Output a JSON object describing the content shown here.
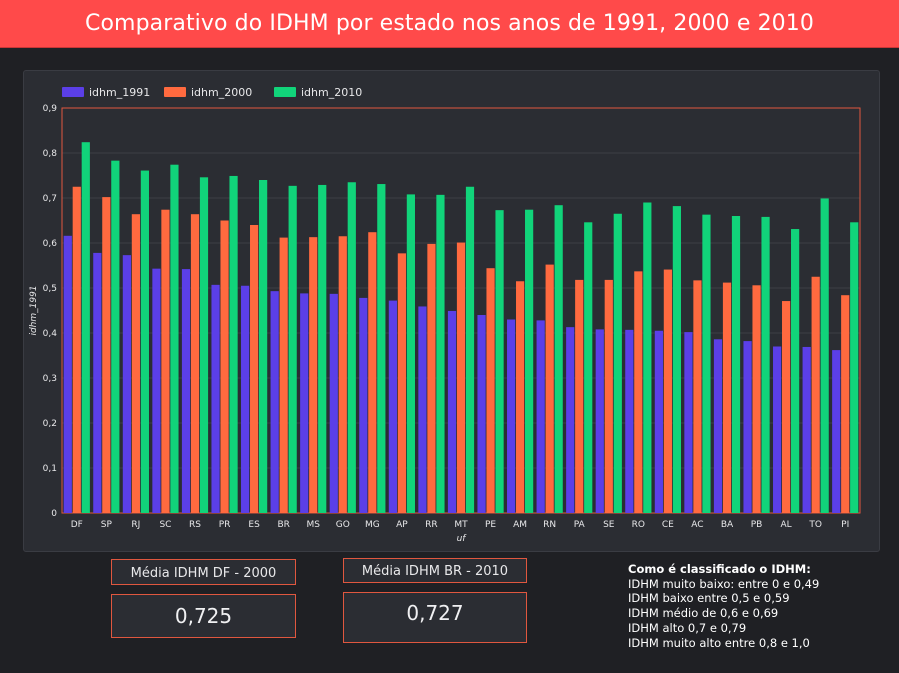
{
  "header": {
    "title": "Comparativo do IDHM por estado nos anos de 1991, 2000 e 2010"
  },
  "colors": {
    "header_bg": "#ff4a4a",
    "idhm_1991": "#5b3fe8",
    "idhm_2000": "#ff6a3f",
    "idhm_2010": "#11d47a"
  },
  "chart_data": {
    "type": "bar",
    "xlabel": "uf",
    "ylabel": "idhm_1991",
    "ylim": [
      0,
      0.9
    ],
    "yticks": [
      "0",
      "0,1",
      "0,2",
      "0,3",
      "0,4",
      "0,5",
      "0,6",
      "0,7",
      "0,8",
      "0,9"
    ],
    "legend_position": "top-left",
    "grid": true,
    "categories": [
      "DF",
      "SP",
      "RJ",
      "SC",
      "RS",
      "PR",
      "ES",
      "BR",
      "MS",
      "GO",
      "MG",
      "AP",
      "RR",
      "MT",
      "PE",
      "AM",
      "RN",
      "PA",
      "SE",
      "RO",
      "CE",
      "AC",
      "BA",
      "PB",
      "AL",
      "TO",
      "PI"
    ],
    "series": [
      {
        "name": "idhm_1991",
        "color": "#5b3fe8",
        "values": [
          0.616,
          0.578,
          0.573,
          0.543,
          0.542,
          0.507,
          0.505,
          0.493,
          0.488,
          0.487,
          0.478,
          0.472,
          0.459,
          0.449,
          0.44,
          0.43,
          0.428,
          0.413,
          0.408,
          0.407,
          0.405,
          0.402,
          0.386,
          0.382,
          0.37,
          0.369,
          0.362
        ]
      },
      {
        "name": "idhm_2000",
        "color": "#ff6a3f",
        "values": [
          0.725,
          0.702,
          0.664,
          0.674,
          0.664,
          0.65,
          0.64,
          0.612,
          0.613,
          0.615,
          0.624,
          0.577,
          0.598,
          0.601,
          0.544,
          0.515,
          0.552,
          0.518,
          0.518,
          0.537,
          0.541,
          0.517,
          0.512,
          0.506,
          0.471,
          0.525,
          0.484
        ]
      },
      {
        "name": "idhm_2010",
        "color": "#11d47a",
        "values": [
          0.824,
          0.783,
          0.761,
          0.774,
          0.746,
          0.749,
          0.74,
          0.727,
          0.729,
          0.735,
          0.731,
          0.708,
          0.707,
          0.725,
          0.673,
          0.674,
          0.684,
          0.646,
          0.665,
          0.69,
          0.682,
          0.663,
          0.66,
          0.658,
          0.631,
          0.699,
          0.646
        ]
      }
    ]
  },
  "cards": {
    "df": {
      "label": "Média IDHM DF - 2000",
      "value": "0,725"
    },
    "br": {
      "label": "Média IDHM BR - 2010",
      "value": "0,727"
    }
  },
  "classification": {
    "title": "Como é classificado o IDHM:",
    "lines": [
      "IDHM muito baixo: entre 0 e 0,49",
      "IDHM baixo entre 0,5 e 0,59",
      "IDHM médio de 0,6 e 0,69",
      "IDHM alto 0,7 e 0,79",
      "IDHM muito alto entre 0,8 e 1,0"
    ]
  }
}
